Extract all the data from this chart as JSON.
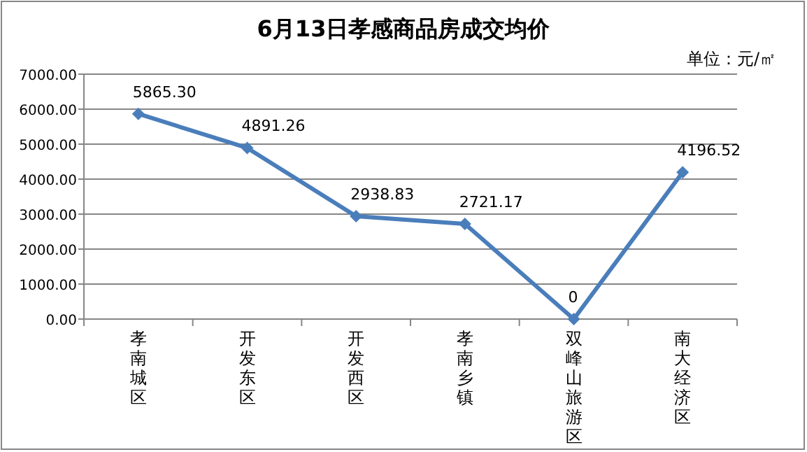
{
  "chart_data": {
    "type": "line",
    "title": "6月13日孝感商品房成交均价",
    "annotations": [
      "单位：元/㎡"
    ],
    "categories": [
      "孝南城区",
      "开发东区",
      "开发西区",
      "孝南乡镇",
      "双峰山旅游区",
      "南大经济区"
    ],
    "series": [
      {
        "color": "#4a7ebb",
        "values": [
          5865.3,
          4891.26,
          2938.83,
          2721.17,
          0,
          4196.52
        ],
        "value_labels": [
          "5865.30",
          "4891.26",
          "2938.83",
          "2721.17",
          "0",
          "4196.52"
        ]
      }
    ],
    "ylim": [
      0,
      7000
    ],
    "yticks": [
      {
        "value": 0,
        "label": "0.00"
      },
      {
        "value": 1000,
        "label": "1000.00"
      },
      {
        "value": 2000,
        "label": "2000.00"
      },
      {
        "value": 3000,
        "label": "3000.00"
      },
      {
        "value": 4000,
        "label": "4000.00"
      },
      {
        "value": 5000,
        "label": "5000.00"
      },
      {
        "value": 6000,
        "label": "6000.00"
      },
      {
        "value": 7000,
        "label": "7000.00"
      }
    ],
    "grid": "y",
    "marker": "diamond",
    "line_style": "solid"
  }
}
